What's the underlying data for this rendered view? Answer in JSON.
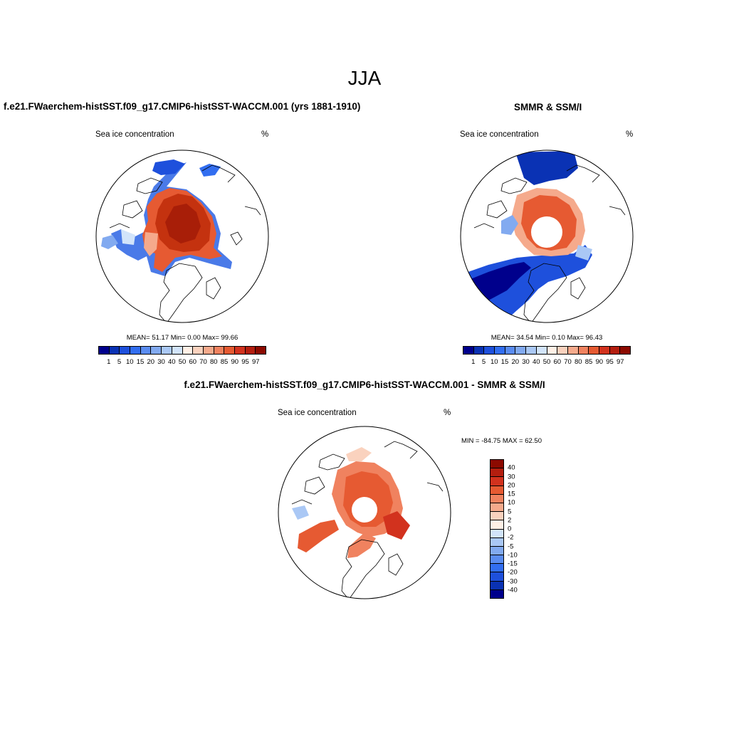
{
  "figure": {
    "title": "JJA"
  },
  "panels": {
    "model": {
      "title": "f.e21.FWaerchem-histSST.f09_g17.CMIP6-histSST-WACCM.001 (yrs 1881-1910)",
      "variable": "Sea ice concentration",
      "units": "%",
      "stats": "MEAN=  51.17  Min=   0.00  Max=  99.66"
    },
    "obs": {
      "title": "SMMR & SSM/I",
      "variable": "Sea ice concentration",
      "units": "%",
      "stats": "MEAN=  34.54  Min=   0.10  Max=  96.43"
    },
    "diff": {
      "title": "f.e21.FWaerchem-histSST.f09_g17.CMIP6-histSST-WACCM.001 - SMMR & SSM/I",
      "variable": "Sea ice concentration",
      "units": "%",
      "stats": "MIN = -84.75 MAX =  62.50"
    }
  },
  "colorbar_abs": {
    "ticks": [
      "1",
      "5",
      "10",
      "15",
      "20",
      "30",
      "40",
      "50",
      "60",
      "70",
      "80",
      "85",
      "90",
      "95",
      "97"
    ],
    "colors": [
      "#00008c",
      "#0a32b4",
      "#1e50dc",
      "#326ef0",
      "#5a8cf0",
      "#82aaf0",
      "#aac8f5",
      "#d2e4fa",
      "#fff0e6",
      "#fad2be",
      "#f5aa8c",
      "#f0825f",
      "#e65a32",
      "#d2321e",
      "#b41e0f",
      "#8c0a00"
    ]
  },
  "colorbar_diff": {
    "ticks": [
      "40",
      "30",
      "20",
      "15",
      "10",
      "5",
      "2",
      "0",
      "-2",
      "-5",
      "-10",
      "-15",
      "-20",
      "-30",
      "-40"
    ],
    "colors": [
      "#8c0a00",
      "#b41e0f",
      "#d2321e",
      "#e65a32",
      "#f0825f",
      "#f5aa8c",
      "#fad2be",
      "#fff0e6",
      "#d2e4fa",
      "#aac8f5",
      "#82aaf0",
      "#5a8cf0",
      "#326ef0",
      "#1e50dc",
      "#0a32b4",
      "#00008c"
    ]
  }
}
